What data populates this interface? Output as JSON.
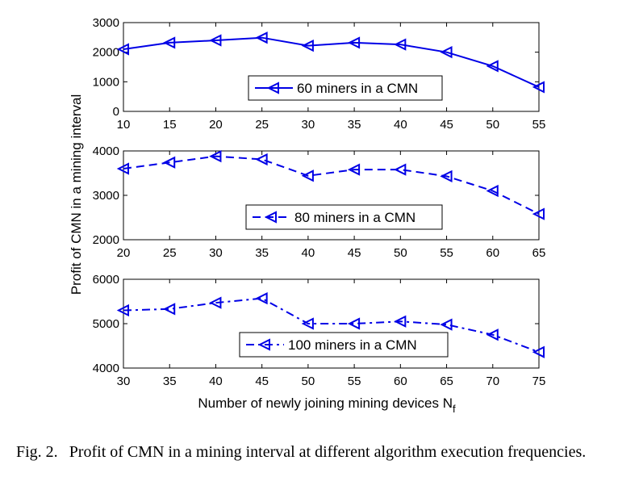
{
  "chart_data": [
    {
      "type": "line",
      "x": [
        10,
        15,
        20,
        25,
        30,
        35,
        40,
        45,
        50,
        55
      ],
      "series": [
        {
          "name": "60 miners in a CMN",
          "values": [
            2100,
            2320,
            2400,
            2490,
            2220,
            2320,
            2260,
            2000,
            1530,
            820
          ],
          "line_style": "solid",
          "marker": "left-triangle"
        }
      ],
      "xlim": [
        10,
        55
      ],
      "ylim": [
        0,
        3000
      ],
      "xticks": [
        10,
        15,
        20,
        25,
        30,
        35,
        40,
        45,
        50,
        55
      ],
      "yticks": [
        0,
        1000,
        2000,
        3000
      ],
      "legend_position": "center-right",
      "grid": false
    },
    {
      "type": "line",
      "x": [
        20,
        25,
        30,
        35,
        40,
        45,
        50,
        55,
        60,
        65
      ],
      "series": [
        {
          "name": "80 miners in a CMN",
          "values": [
            3600,
            3740,
            3880,
            3810,
            3440,
            3580,
            3580,
            3430,
            3100,
            2580
          ],
          "line_style": "dashed",
          "marker": "left-triangle"
        }
      ],
      "xlim": [
        20,
        65
      ],
      "ylim": [
        2000,
        4000
      ],
      "xticks": [
        20,
        25,
        30,
        35,
        40,
        45,
        50,
        55,
        60,
        65
      ],
      "yticks": [
        2000,
        3000,
        4000
      ],
      "legend_position": "lower-center",
      "grid": false
    },
    {
      "type": "line",
      "x": [
        30,
        35,
        40,
        45,
        50,
        55,
        60,
        65,
        70,
        75
      ],
      "series": [
        {
          "name": "100 miners in a CMN",
          "values": [
            5300,
            5330,
            5470,
            5570,
            5000,
            5000,
            5050,
            4980,
            4750,
            4360
          ],
          "line_style": "dash-dot",
          "marker": "left-triangle"
        }
      ],
      "xlim": [
        30,
        75
      ],
      "ylim": [
        4000,
        6000
      ],
      "xticks": [
        30,
        35,
        40,
        45,
        50,
        55,
        60,
        65,
        70,
        75
      ],
      "yticks": [
        4000,
        5000,
        6000
      ],
      "legend_position": "lower-center",
      "grid": false
    }
  ],
  "shared_labels": {
    "ylabel": "Profit of CMN in a mining interval",
    "xlabel": "Number of newly joining mining devices N",
    "xlabel_subscript": "f"
  },
  "colors": {
    "series": "#0000e6",
    "axes": "#000000"
  },
  "caption": {
    "number": "Fig. 2.",
    "text": "Profit of CMN in a mining interval at different algorithm execution frequencies."
  }
}
